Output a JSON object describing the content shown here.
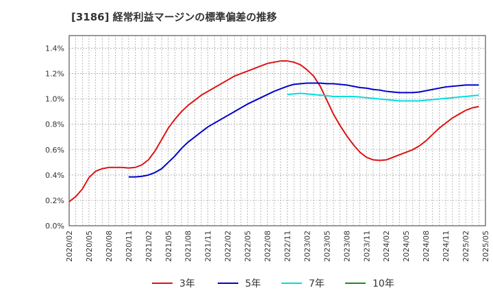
{
  "chart_data": {
    "type": "line",
    "title": "[3186]  経常利益マージンの標準偏差の推移",
    "xlabel": "",
    "ylabel": "",
    "ylim": [
      0,
      1.5
    ],
    "y_ticks": [
      0,
      0.2,
      0.4,
      0.6,
      0.8,
      1.0,
      1.2,
      1.4
    ],
    "y_tick_labels": [
      "0.0%",
      "0.2%",
      "0.4%",
      "0.6%",
      "0.8%",
      "1.0%",
      "1.2%",
      "1.4%"
    ],
    "x_tick_labels": [
      "2020/02",
      "2020/05",
      "2020/08",
      "2020/11",
      "2021/02",
      "2021/05",
      "2021/08",
      "2021/11",
      "2022/02",
      "2022/05",
      "2022/08",
      "2022/11",
      "2023/02",
      "2023/05",
      "2023/08",
      "2023/11",
      "2024/02",
      "2024/05",
      "2024/08",
      "2024/11",
      "2025/02",
      "2025/05"
    ],
    "grid": true,
    "legend_position": "bottom",
    "series": [
      {
        "name": "3年",
        "color": "#dd1111",
        "points": [
          [
            "2020/02",
            0.19
          ],
          [
            "2020/03",
            0.23
          ],
          [
            "2020/04",
            0.29
          ],
          [
            "2020/05",
            0.38
          ],
          [
            "2020/06",
            0.43
          ],
          [
            "2020/07",
            0.45
          ],
          [
            "2020/08",
            0.46
          ],
          [
            "2020/09",
            0.46
          ],
          [
            "2020/10",
            0.46
          ],
          [
            "2020/11",
            0.455
          ],
          [
            "2020/12",
            0.46
          ],
          [
            "2021/01",
            0.48
          ],
          [
            "2021/02",
            0.52
          ],
          [
            "2021/03",
            0.59
          ],
          [
            "2021/04",
            0.68
          ],
          [
            "2021/05",
            0.77
          ],
          [
            "2021/06",
            0.84
          ],
          [
            "2021/07",
            0.9
          ],
          [
            "2021/08",
            0.95
          ],
          [
            "2021/09",
            0.99
          ],
          [
            "2021/10",
            1.03
          ],
          [
            "2021/11",
            1.06
          ],
          [
            "2021/12",
            1.09
          ],
          [
            "2022/01",
            1.12
          ],
          [
            "2022/02",
            1.15
          ],
          [
            "2022/03",
            1.18
          ],
          [
            "2022/04",
            1.2
          ],
          [
            "2022/05",
            1.22
          ],
          [
            "2022/06",
            1.24
          ],
          [
            "2022/07",
            1.26
          ],
          [
            "2022/08",
            1.28
          ],
          [
            "2022/09",
            1.29
          ],
          [
            "2022/10",
            1.3
          ],
          [
            "2022/11",
            1.3
          ],
          [
            "2022/12",
            1.29
          ],
          [
            "2023/01",
            1.27
          ],
          [
            "2023/02",
            1.23
          ],
          [
            "2023/03",
            1.18
          ],
          [
            "2023/04",
            1.1
          ],
          [
            "2023/05",
            0.99
          ],
          [
            "2023/06",
            0.88
          ],
          [
            "2023/07",
            0.79
          ],
          [
            "2023/08",
            0.71
          ],
          [
            "2023/09",
            0.64
          ],
          [
            "2023/10",
            0.58
          ],
          [
            "2023/11",
            0.54
          ],
          [
            "2023/12",
            0.52
          ],
          [
            "2024/01",
            0.515
          ],
          [
            "2024/02",
            0.52
          ],
          [
            "2024/03",
            0.54
          ],
          [
            "2024/04",
            0.56
          ],
          [
            "2024/05",
            0.58
          ],
          [
            "2024/06",
            0.6
          ],
          [
            "2024/07",
            0.63
          ],
          [
            "2024/08",
            0.67
          ],
          [
            "2024/09",
            0.72
          ],
          [
            "2024/10",
            0.77
          ],
          [
            "2024/11",
            0.81
          ],
          [
            "2024/12",
            0.85
          ],
          [
            "2025/01",
            0.88
          ],
          [
            "2025/02",
            0.91
          ],
          [
            "2025/03",
            0.93
          ],
          [
            "2025/04",
            0.94
          ]
        ]
      },
      {
        "name": "5年",
        "color": "#0000cc",
        "points": [
          [
            "2020/11",
            0.385
          ],
          [
            "2020/12",
            0.385
          ],
          [
            "2021/01",
            0.39
          ],
          [
            "2021/02",
            0.4
          ],
          [
            "2021/03",
            0.42
          ],
          [
            "2021/04",
            0.45
          ],
          [
            "2021/05",
            0.5
          ],
          [
            "2021/06",
            0.55
          ],
          [
            "2021/07",
            0.61
          ],
          [
            "2021/08",
            0.66
          ],
          [
            "2021/09",
            0.7
          ],
          [
            "2021/10",
            0.74
          ],
          [
            "2021/11",
            0.78
          ],
          [
            "2021/12",
            0.81
          ],
          [
            "2022/01",
            0.84
          ],
          [
            "2022/02",
            0.87
          ],
          [
            "2022/03",
            0.9
          ],
          [
            "2022/04",
            0.93
          ],
          [
            "2022/05",
            0.96
          ],
          [
            "2022/06",
            0.985
          ],
          [
            "2022/07",
            1.01
          ],
          [
            "2022/08",
            1.035
          ],
          [
            "2022/09",
            1.06
          ],
          [
            "2022/10",
            1.08
          ],
          [
            "2022/11",
            1.1
          ],
          [
            "2022/12",
            1.115
          ],
          [
            "2023/01",
            1.12
          ],
          [
            "2023/02",
            1.125
          ],
          [
            "2023/03",
            1.125
          ],
          [
            "2023/04",
            1.125
          ],
          [
            "2023/05",
            1.12
          ],
          [
            "2023/06",
            1.12
          ],
          [
            "2023/07",
            1.115
          ],
          [
            "2023/08",
            1.11
          ],
          [
            "2023/09",
            1.1
          ],
          [
            "2023/10",
            1.09
          ],
          [
            "2023/11",
            1.085
          ],
          [
            "2023/12",
            1.075
          ],
          [
            "2024/01",
            1.07
          ],
          [
            "2024/02",
            1.06
          ],
          [
            "2024/03",
            1.055
          ],
          [
            "2024/04",
            1.05
          ],
          [
            "2024/05",
            1.05
          ],
          [
            "2024/06",
            1.05
          ],
          [
            "2024/07",
            1.055
          ],
          [
            "2024/08",
            1.065
          ],
          [
            "2024/09",
            1.075
          ],
          [
            "2024/10",
            1.085
          ],
          [
            "2024/11",
            1.095
          ],
          [
            "2024/12",
            1.1
          ],
          [
            "2025/01",
            1.105
          ],
          [
            "2025/02",
            1.11
          ],
          [
            "2025/03",
            1.11
          ],
          [
            "2025/04",
            1.11
          ]
        ]
      },
      {
        "name": "7年",
        "color": "#00dddd",
        "points": [
          [
            "2022/11",
            1.035
          ],
          [
            "2022/12",
            1.04
          ],
          [
            "2023/01",
            1.045
          ],
          [
            "2023/02",
            1.04
          ],
          [
            "2023/03",
            1.035
          ],
          [
            "2023/04",
            1.03
          ],
          [
            "2023/05",
            1.025
          ],
          [
            "2023/06",
            1.02
          ],
          [
            "2023/07",
            1.02
          ],
          [
            "2023/08",
            1.02
          ],
          [
            "2023/09",
            1.02
          ],
          [
            "2023/10",
            1.015
          ],
          [
            "2023/11",
            1.01
          ],
          [
            "2023/12",
            1.005
          ],
          [
            "2024/01",
            1.0
          ],
          [
            "2024/02",
            0.995
          ],
          [
            "2024/03",
            0.99
          ],
          [
            "2024/04",
            0.985
          ],
          [
            "2024/05",
            0.985
          ],
          [
            "2024/06",
            0.985
          ],
          [
            "2024/07",
            0.985
          ],
          [
            "2024/08",
            0.99
          ],
          [
            "2024/09",
            0.995
          ],
          [
            "2024/10",
            1.0
          ],
          [
            "2024/11",
            1.005
          ],
          [
            "2024/12",
            1.01
          ],
          [
            "2025/01",
            1.015
          ],
          [
            "2025/02",
            1.02
          ],
          [
            "2025/03",
            1.025
          ],
          [
            "2025/04",
            1.03
          ]
        ]
      },
      {
        "name": "10年",
        "color": "#228822",
        "points": []
      }
    ]
  }
}
